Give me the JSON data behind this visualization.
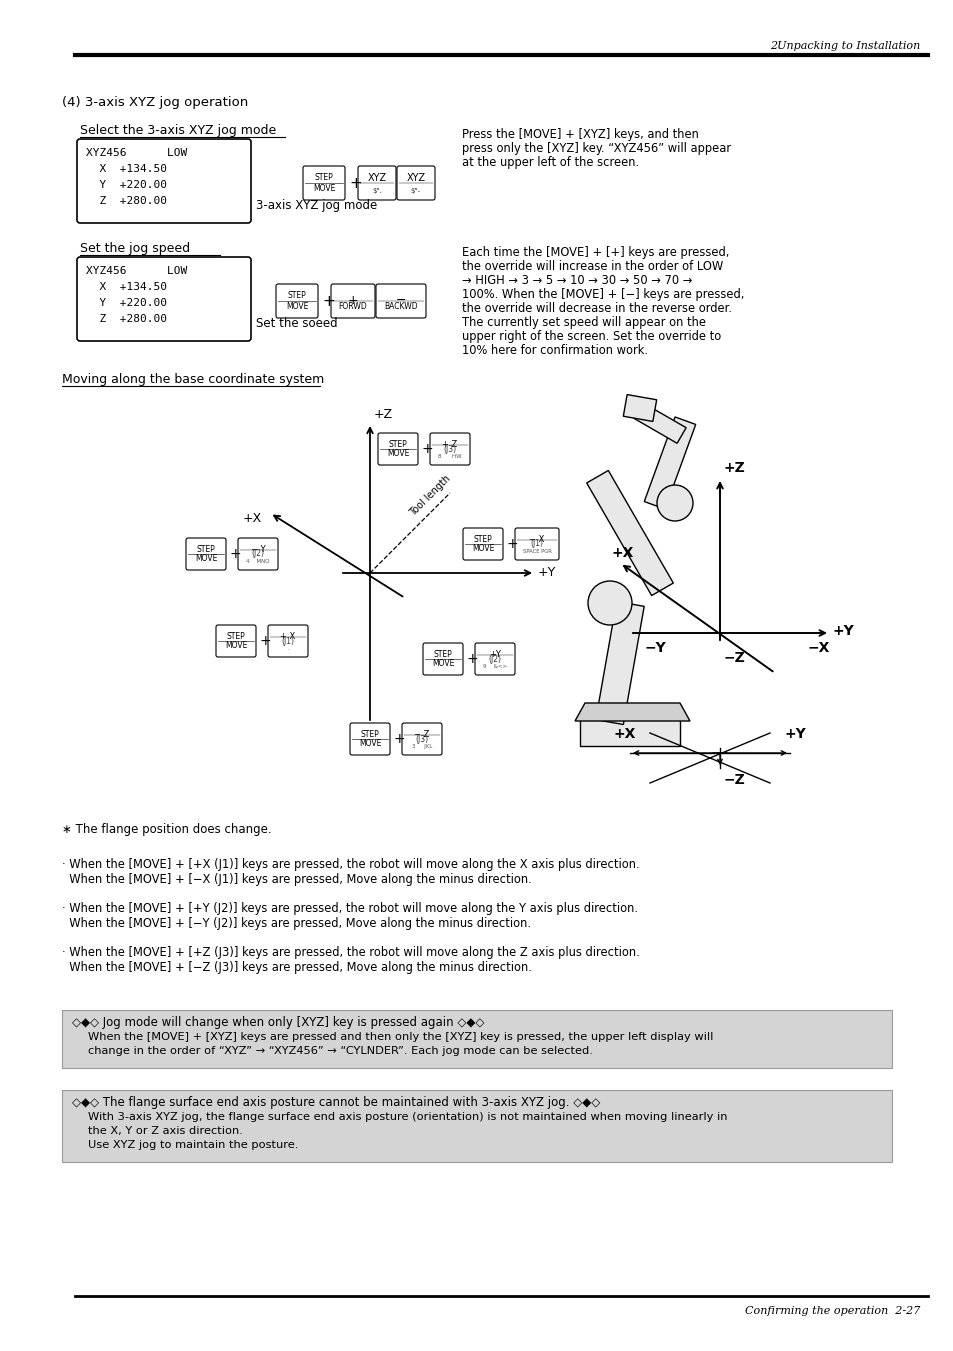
{
  "page_header_right": "2Unpacking to Installation",
  "page_footer_right": "Confirming the operation  2-27",
  "title": "(4) 3-axis XYZ jog operation",
  "section1_underline": "Select the 3-axis XYZ jog mode",
  "section2_underline": "Set the jog speed",
  "jog_mode_label": "3-axis XYZ jog mode",
  "set_speed_label": "Set the soeed",
  "right_text1": [
    "Press the [MOVE] + [XYZ] keys, and then",
    "press only the [XYZ] key. “XYZ456” will appear",
    "at the upper left of the screen."
  ],
  "right_text2_line1": "Each time the [MOVE] + [+] keys are pressed,",
  "right_text2_line2": "the override will increase in the order of LOW",
  "right_text2_line3": "→ HIGH → 3 → 5 → 10 → 30 → 50 → 70 →",
  "right_text2_line4": "100%. When the [MOVE] + [−] keys are pressed,",
  "right_text2_line5": "the override will decrease in the reverse order.",
  "right_text2_line6": "The currently set speed will appear on the",
  "right_text2_line7": "upper right of the screen. Set the override to",
  "right_text2_line8": "10% here for confirmation work.",
  "coord_section": "Moving along the base coordinate system",
  "flange_note": "∗ The flange position does change.",
  "bullet1a": "· When the [MOVE] + [+X (J1)] keys are pressed, the robot will move along the X axis plus direction.",
  "bullet1b": "  When the [MOVE] + [−X (J1)] keys are pressed, Move along the minus direction.",
  "bullet2a": "· When the [MOVE] + [+Y (J2)] keys are pressed, the robot will move along the Y axis plus direction.",
  "bullet2b": "  When the [MOVE] + [−Y (J2)] keys are pressed, Move along the minus direction.",
  "bullet3a": "· When the [MOVE] + [+Z (J3)] keys are pressed, the robot will move along the Z axis plus direction.",
  "bullet3b": "  When the [MOVE] + [−Z (J3)] keys are pressed, Move along the minus direction.",
  "notice1_title": "◇◆◇ Jog mode will change when only [XYZ] key is pressed again ◇◆◇",
  "notice1_line1": "When the [MOVE] + [XYZ] keys are pressed and then only the [XYZ] key is pressed, the upper left display will",
  "notice1_line2": "change in the order of “XYZ” → “XYZ456” → “CYLNDER”. Each jog mode can be selected.",
  "notice2_title": "◇◆◇ The flange surface end axis posture cannot be maintained with 3-axis XYZ jog. ◇◆◇",
  "notice2_line1": "With 3-axis XYZ jog, the flange surface end axis posture (orientation) is not maintained when moving linearly in",
  "notice2_line2": "the X, Y or Z axis direction.",
  "notice2_line3": "Use XYZ jog to maintain the posture.",
  "bg_color": "#ffffff",
  "gray_bg": "#d4d4d4"
}
